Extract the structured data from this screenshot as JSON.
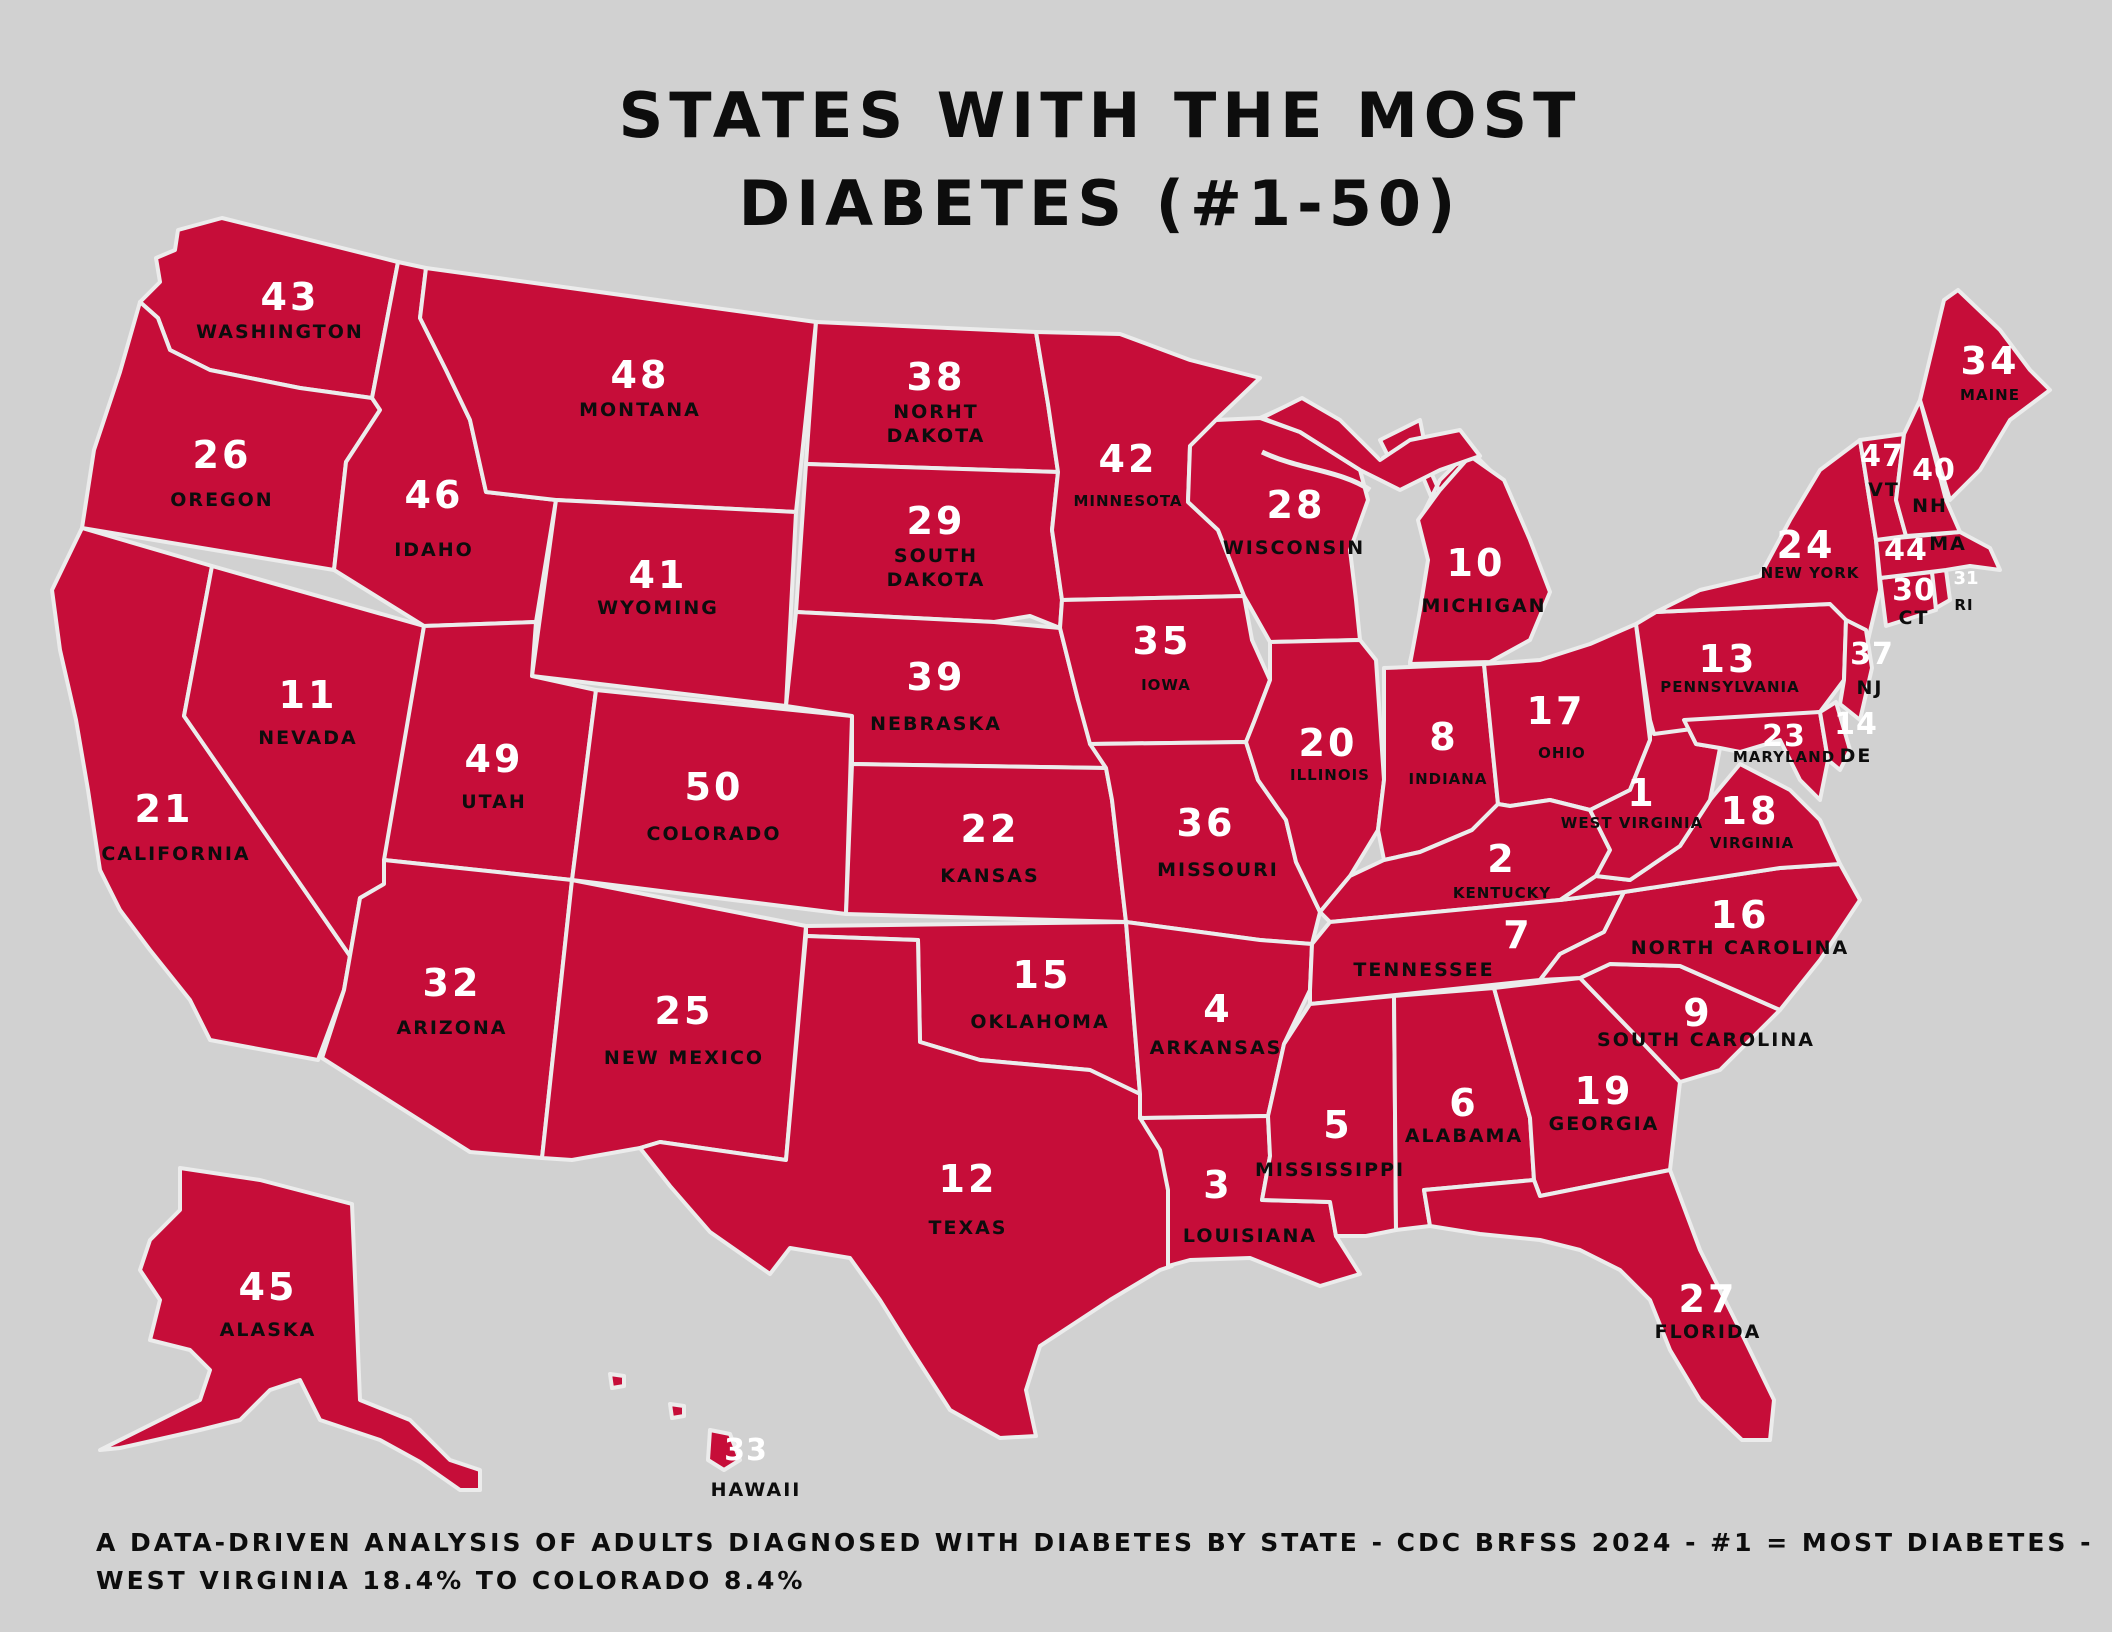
{
  "title": {
    "line1": "STATES WITH THE MOST",
    "line2": "DIABETES (#1-50)"
  },
  "footer": {
    "line1": "A DATA-DRIVEN ANALYSIS OF ADULTS DIAGNOSED WITH DIABETES BY STATE - CDC BRFSS 2024 - #1 = MOST DIABETES -",
    "line2": "WEST VIRGINIA 18.4% TO COLORADO 8.4%"
  },
  "colors": {
    "background": "#d1d1d1",
    "state_fill": "#c60d39",
    "border": "#ececec",
    "rank_text": "#ffffff",
    "name_text": "#0d0d0d"
  },
  "states": [
    {
      "key": "wa",
      "rank": "43",
      "name": "WASHINGTON"
    },
    {
      "key": "or",
      "rank": "26",
      "name": "OREGON"
    },
    {
      "key": "ca",
      "rank": "21",
      "name": "CALIFORNIA"
    },
    {
      "key": "nv",
      "rank": "11",
      "name": "NEVADA"
    },
    {
      "key": "id",
      "rank": "46",
      "name": "IDAHO"
    },
    {
      "key": "mt",
      "rank": "48",
      "name": "MONTANA"
    },
    {
      "key": "wy",
      "rank": "41",
      "name": "WYOMING"
    },
    {
      "key": "ut",
      "rank": "49",
      "name": "UTAH"
    },
    {
      "key": "az",
      "rank": "32",
      "name": "ARIZONA"
    },
    {
      "key": "co",
      "rank": "50",
      "name": "COLORADO"
    },
    {
      "key": "nm",
      "rank": "25",
      "name": "NEW MEXICO"
    },
    {
      "key": "nd",
      "rank": "38",
      "name_lines": [
        "NORHT",
        "DAKOTA"
      ]
    },
    {
      "key": "sd",
      "rank": "29",
      "name_lines": [
        "SOUTH",
        "DAKOTA"
      ]
    },
    {
      "key": "ne",
      "rank": "39",
      "name": "NEBRASKA"
    },
    {
      "key": "ks",
      "rank": "22",
      "name": "KANSAS"
    },
    {
      "key": "ok",
      "rank": "15",
      "name": "OKLAHOMA"
    },
    {
      "key": "tx",
      "rank": "12",
      "name": "TEXAS"
    },
    {
      "key": "mn",
      "rank": "42",
      "name": "MINNESOTA"
    },
    {
      "key": "ia",
      "rank": "35",
      "name": "IOWA"
    },
    {
      "key": "mo",
      "rank": "36",
      "name": "MISSOURI"
    },
    {
      "key": "ar",
      "rank": "4",
      "name": "ARKANSAS"
    },
    {
      "key": "la",
      "rank": "3",
      "name": "LOUISIANA"
    },
    {
      "key": "wi",
      "rank": "28",
      "name": "WISCONSIN"
    },
    {
      "key": "il",
      "rank": "20",
      "name": "ILLINOIS"
    },
    {
      "key": "mi",
      "rank": "10",
      "name": "MICHIGAN"
    },
    {
      "key": "in",
      "rank": "8",
      "name": "INDIANA"
    },
    {
      "key": "oh",
      "rank": "17",
      "name": "OHIO"
    },
    {
      "key": "ky",
      "rank": "2",
      "name": "KENTUCKY"
    },
    {
      "key": "tn",
      "rank": "7",
      "name": "TENNESSEE"
    },
    {
      "key": "ms",
      "rank": "5",
      "name": "MISSISSIPPI"
    },
    {
      "key": "al",
      "rank": "6",
      "name": "ALABAMA"
    },
    {
      "key": "ga",
      "rank": "19",
      "name": "GEORGIA"
    },
    {
      "key": "fl",
      "rank": "27",
      "name": "FLORIDA"
    },
    {
      "key": "sc",
      "rank": "9",
      "name": "SOUTH CAROLINA"
    },
    {
      "key": "nc",
      "rank": "16",
      "name": "NORTH CAROLINA"
    },
    {
      "key": "va",
      "rank": "18",
      "name": "VIRGINIA"
    },
    {
      "key": "wv",
      "rank": "1",
      "name": "WEST VIRGINIA"
    },
    {
      "key": "pa",
      "rank": "13",
      "name": "PENNSYLVANIA"
    },
    {
      "key": "ny",
      "rank": "24",
      "name": "NEW YORK"
    },
    {
      "key": "md",
      "rank": "23",
      "name": "MARYLAND"
    },
    {
      "key": "de",
      "rank": "14",
      "name": "DE"
    },
    {
      "key": "nj",
      "rank": "37",
      "name": "NJ"
    },
    {
      "key": "ct",
      "rank": "30",
      "name": "CT"
    },
    {
      "key": "ri",
      "rank": "31",
      "name": "RI"
    },
    {
      "key": "ma",
      "rank": "44",
      "name": "MA"
    },
    {
      "key": "vt",
      "rank": "47",
      "name": "VT"
    },
    {
      "key": "nh",
      "rank": "40",
      "name": "NH"
    },
    {
      "key": "me",
      "rank": "34",
      "name": "MAINE"
    },
    {
      "key": "ak",
      "rank": "45",
      "name": "ALASKA"
    },
    {
      "key": "hi",
      "rank": "33",
      "name": "HAWAII"
    }
  ]
}
